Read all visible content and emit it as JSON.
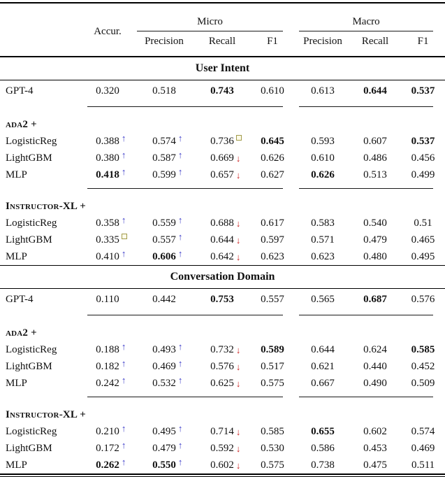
{
  "table": {
    "header": {
      "accur": "Accur.",
      "micro": "Micro",
      "macro": "Macro",
      "sub": [
        "Precision",
        "Recall",
        "F1",
        "Precision",
        "Recall",
        "F1"
      ]
    },
    "legend_colors": {
      "up": "#3a3ac8",
      "down": "#cc2222",
      "sqb": "#a09a4a",
      "sqf": "#fffbe8"
    },
    "sections": [
      {
        "title": "User Intent",
        "rows": [
          {
            "label": "GPT-4",
            "model": true,
            "rule_after": true,
            "cells": [
              {
                "v": "0.320"
              },
              {
                "v": "0.518"
              },
              {
                "v": "0.743",
                "b": 1
              },
              {
                "v": "0.610"
              },
              {
                "v": "0.613"
              },
              {
                "v": "0.644",
                "b": 1
              },
              {
                "v": "0.537",
                "b": 1
              }
            ]
          },
          {
            "label": "ada2 +",
            "group": true
          },
          {
            "label": "LogisticReg",
            "cells": [
              {
                "v": "0.388",
                "m": "up"
              },
              {
                "v": "0.574",
                "m": "up"
              },
              {
                "v": "0.736",
                "m": "sq"
              },
              {
                "v": "0.645",
                "b": 1
              },
              {
                "v": "0.593"
              },
              {
                "v": "0.607"
              },
              {
                "v": "0.537",
                "b": 1
              }
            ]
          },
          {
            "label": "LightGBM",
            "cells": [
              {
                "v": "0.380",
                "m": "up"
              },
              {
                "v": "0.587",
                "m": "up"
              },
              {
                "v": "0.669",
                "m": "down"
              },
              {
                "v": "0.626"
              },
              {
                "v": "0.610"
              },
              {
                "v": "0.486"
              },
              {
                "v": "0.456"
              }
            ]
          },
          {
            "label": "MLP",
            "rule_after": true,
            "cells": [
              {
                "v": "0.418",
                "b": 1,
                "m": "up"
              },
              {
                "v": "0.599",
                "m": "up"
              },
              {
                "v": "0.657",
                "m": "down"
              },
              {
                "v": "0.627"
              },
              {
                "v": "0.626",
                "b": 1
              },
              {
                "v": "0.513"
              },
              {
                "v": "0.499"
              }
            ]
          },
          {
            "label": "Instructor-XL +",
            "group": true
          },
          {
            "label": "LogisticReg",
            "cells": [
              {
                "v": "0.358",
                "m": "up"
              },
              {
                "v": "0.559",
                "m": "up"
              },
              {
                "v": "0.688",
                "m": "down"
              },
              {
                "v": "0.617"
              },
              {
                "v": "0.583"
              },
              {
                "v": "0.540"
              },
              {
                "v": "0.51"
              }
            ]
          },
          {
            "label": "LightGBM",
            "cells": [
              {
                "v": "0.335",
                "m": "sq"
              },
              {
                "v": "0.557",
                "m": "up"
              },
              {
                "v": "0.644",
                "m": "down"
              },
              {
                "v": "0.597"
              },
              {
                "v": "0.571"
              },
              {
                "v": "0.479"
              },
              {
                "v": "0.465"
              }
            ]
          },
          {
            "label": "MLP",
            "cells": [
              {
                "v": "0.410",
                "m": "up"
              },
              {
                "v": "0.606",
                "b": 1,
                "m": "up"
              },
              {
                "v": "0.642",
                "m": "down"
              },
              {
                "v": "0.623"
              },
              {
                "v": "0.623"
              },
              {
                "v": "0.480"
              },
              {
                "v": "0.495"
              }
            ]
          }
        ]
      },
      {
        "title": "Conversation Domain",
        "rows": [
          {
            "label": "GPT-4",
            "model": true,
            "rule_after": true,
            "cells": [
              {
                "v": "0.110"
              },
              {
                "v": "0.442"
              },
              {
                "v": "0.753",
                "b": 1
              },
              {
                "v": "0.557"
              },
              {
                "v": "0.565"
              },
              {
                "v": "0.687",
                "b": 1
              },
              {
                "v": "0.576"
              }
            ]
          },
          {
            "label": "ada2 +",
            "group": true
          },
          {
            "label": "LogisticReg",
            "cells": [
              {
                "v": "0.188",
                "m": "up"
              },
              {
                "v": "0.493",
                "m": "up"
              },
              {
                "v": "0.732",
                "m": "down"
              },
              {
                "v": "0.589",
                "b": 1
              },
              {
                "v": "0.644"
              },
              {
                "v": "0.624"
              },
              {
                "v": "0.585",
                "b": 1
              }
            ]
          },
          {
            "label": "LightGBM",
            "cells": [
              {
                "v": "0.182",
                "m": "up"
              },
              {
                "v": "0.469",
                "m": "up"
              },
              {
                "v": "0.576",
                "m": "down"
              },
              {
                "v": "0.517"
              },
              {
                "v": "0.621"
              },
              {
                "v": "0.440"
              },
              {
                "v": "0.452"
              }
            ]
          },
          {
            "label": "MLP",
            "rule_after": true,
            "cells": [
              {
                "v": "0.242",
                "m": "up"
              },
              {
                "v": "0.532",
                "m": "up"
              },
              {
                "v": "0.625",
                "m": "down"
              },
              {
                "v": "0.575"
              },
              {
                "v": "0.667"
              },
              {
                "v": "0.490"
              },
              {
                "v": "0.509"
              }
            ]
          },
          {
            "label": "Instructor-XL +",
            "group": true
          },
          {
            "label": "LogisticReg",
            "cells": [
              {
                "v": "0.210",
                "m": "up"
              },
              {
                "v": "0.495",
                "m": "up"
              },
              {
                "v": "0.714",
                "m": "down"
              },
              {
                "v": "0.585"
              },
              {
                "v": "0.655",
                "b": 1
              },
              {
                "v": "0.602"
              },
              {
                "v": "0.574"
              }
            ]
          },
          {
            "label": "LightGBM",
            "cells": [
              {
                "v": "0.172",
                "m": "up"
              },
              {
                "v": "0.479",
                "m": "up"
              },
              {
                "v": "0.592",
                "m": "down"
              },
              {
                "v": "0.530"
              },
              {
                "v": "0.586"
              },
              {
                "v": "0.453"
              },
              {
                "v": "0.469"
              }
            ]
          },
          {
            "label": "MLP",
            "cells": [
              {
                "v": "0.262",
                "b": 1,
                "m": "up"
              },
              {
                "v": "0.550",
                "b": 1,
                "m": "up"
              },
              {
                "v": "0.602",
                "m": "down"
              },
              {
                "v": "0.575"
              },
              {
                "v": "0.738"
              },
              {
                "v": "0.475"
              },
              {
                "v": "0.511"
              }
            ]
          }
        ]
      }
    ]
  }
}
